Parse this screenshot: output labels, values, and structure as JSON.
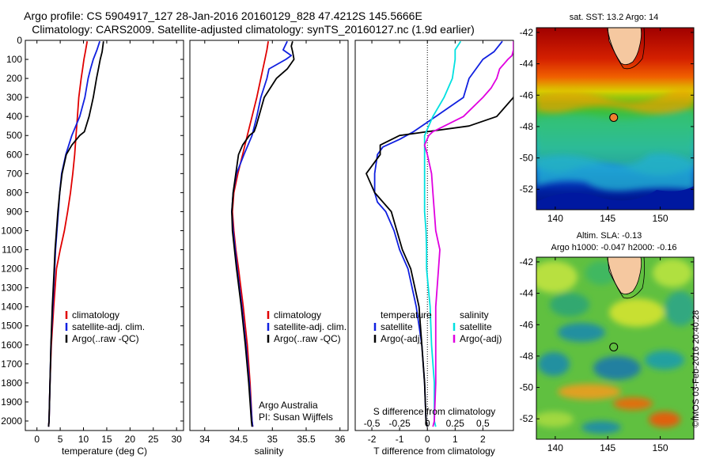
{
  "title": {
    "line1": "Argo profile: CS 5904917_127 28-Jan-2016 20160129_828 47.4212S 145.5666E",
    "line2": "Climatology: CARS2009. Satellite-adjusted climatology: synTS_20160127.nc (1.9d earlier)"
  },
  "colors": {
    "climatology": "#e00000",
    "satellite": "#1020e0",
    "argo": "#000000",
    "satellite_salinity": "#00e0e0",
    "argo_salinity": "#e000e0"
  },
  "y_axis": {
    "range": [
      0,
      2050
    ],
    "ticks": [
      0,
      100,
      200,
      300,
      400,
      500,
      600,
      700,
      800,
      900,
      1000,
      1100,
      1200,
      1300,
      1400,
      1500,
      1600,
      1700,
      1800,
      1900,
      2000
    ]
  },
  "chart_data": [
    {
      "type": "line",
      "id": "temperature",
      "xlabel": "temperature (deg C)",
      "xlim": [
        -2.5,
        31.5
      ],
      "ylim": [
        0,
        2050
      ],
      "x_ticks": [
        0,
        5,
        10,
        15,
        20,
        25,
        30
      ],
      "legend": {
        "position": "lower-right",
        "entries": [
          "climatology",
          "satellite-adj. clim.",
          "Argo(..raw -QC)"
        ]
      },
      "series": [
        {
          "name": "climatology",
          "color_key": "climatology",
          "depth": [
            5,
            60,
            100,
            150,
            200,
            300,
            400,
            500,
            600,
            700,
            800,
            900,
            1000,
            1100,
            1200,
            1400,
            1600,
            1800,
            2000,
            2030
          ],
          "values": [
            10.8,
            10.4,
            10.1,
            9.8,
            9.5,
            9.0,
            8.7,
            8.4,
            8.1,
            7.7,
            7.2,
            6.6,
            5.9,
            5.0,
            4.2,
            3.6,
            3.1,
            2.8,
            2.6,
            2.5
          ]
        },
        {
          "name": "satellite-adj. clim.",
          "color_key": "satellite",
          "depth": [
            5,
            50,
            100,
            150,
            200,
            300,
            400,
            500,
            600,
            700,
            800,
            900,
            1000,
            1100,
            1200,
            1400,
            1600,
            1800,
            2000,
            2030
          ],
          "values": [
            13.5,
            12.9,
            12.1,
            11.5,
            11.0,
            10.3,
            9.2,
            7.5,
            6.2,
            5.3,
            4.9,
            4.6,
            4.3,
            4.0,
            3.8,
            3.4,
            3.0,
            2.8,
            2.6,
            2.5
          ]
        },
        {
          "name": "Argo(..raw -QC)",
          "color_key": "argo",
          "depth": [
            5,
            60,
            100,
            150,
            200,
            300,
            400,
            480,
            500,
            550,
            600,
            700,
            800,
            900,
            1000,
            1100,
            1200,
            1400,
            1600,
            1800,
            2000,
            2030
          ],
          "values": [
            14.3,
            14.0,
            13.6,
            13.2,
            12.8,
            12.1,
            11.2,
            10.2,
            9.2,
            7.5,
            6.3,
            5.4,
            4.9,
            4.5,
            4.2,
            3.9,
            3.7,
            3.3,
            3.0,
            2.8,
            2.6,
            2.5
          ]
        }
      ]
    },
    {
      "type": "line",
      "id": "salinity",
      "xlabel": "salinity",
      "xlim": [
        33.78,
        36.12
      ],
      "ylim": [
        0,
        2050
      ],
      "x_ticks": [
        34,
        34.5,
        35,
        35.5,
        36
      ],
      "legend": {
        "position": "lower-right",
        "entries": [
          "climatology",
          "satellite-adj. clim.",
          "Argo(..raw -QC)"
        ]
      },
      "annotations": [
        "Argo Australia",
        "PI: Susan Wijffels"
      ],
      "series": [
        {
          "name": "climatology",
          "color_key": "climatology",
          "depth": [
            5,
            50,
            100,
            200,
            300,
            400,
            500,
            600,
            700,
            800,
            900,
            1000,
            1100,
            1200,
            1400,
            1600,
            1800,
            2000,
            2030
          ],
          "values": [
            34.94,
            34.92,
            34.89,
            34.83,
            34.77,
            34.7,
            34.63,
            34.56,
            34.49,
            34.43,
            34.41,
            34.43,
            34.46,
            34.5,
            34.57,
            34.63,
            34.67,
            34.7,
            34.71
          ]
        },
        {
          "name": "satellite-adj. clim.",
          "color_key": "satellite",
          "depth": [
            5,
            50,
            80,
            100,
            150,
            200,
            300,
            400,
            500,
            600,
            700,
            800,
            900,
            1000,
            1100,
            1200,
            1400,
            1600,
            1800,
            2000,
            2030
          ],
          "values": [
            35.22,
            35.16,
            35.28,
            35.2,
            34.95,
            34.92,
            34.83,
            34.77,
            34.7,
            34.58,
            34.47,
            34.42,
            34.4,
            34.42,
            34.45,
            34.48,
            34.55,
            34.61,
            34.66,
            34.7,
            34.71
          ]
        },
        {
          "name": "Argo(..raw -QC)",
          "color_key": "argo",
          "depth": [
            5,
            30,
            60,
            100,
            150,
            200,
            300,
            400,
            450,
            480,
            500,
            550,
            600,
            700,
            800,
            900,
            1000,
            1100,
            1200,
            1400,
            1600,
            1800,
            2000,
            2030
          ],
          "values": [
            35.3,
            35.28,
            35.3,
            35.32,
            35.22,
            35.06,
            34.88,
            34.8,
            34.76,
            34.73,
            34.66,
            34.56,
            34.5,
            34.46,
            34.42,
            34.4,
            34.41,
            34.44,
            34.47,
            34.54,
            34.6,
            34.65,
            34.69,
            34.7
          ]
        }
      ]
    },
    {
      "type": "line",
      "id": "difference",
      "xlabel": "T difference from climatology",
      "xlabel_top": "S difference from climatology",
      "xlim": [
        -2.6,
        3.1
      ],
      "ylim": [
        0,
        2050
      ],
      "x_ticks": [
        -2,
        -1,
        0,
        1,
        2
      ],
      "x_ticks_top": [
        {
          "label": "-0.5",
          "at": -2
        },
        {
          "label": "-0.25",
          "at": -1
        },
        {
          "label": "0",
          "at": 0
        },
        {
          "label": "0.25",
          "at": 1
        },
        {
          "label": "0.5",
          "at": 2
        }
      ],
      "legend": {
        "position": "lower-center",
        "groups": [
          {
            "title": "temperature",
            "entries": [
              "satellite",
              "Argo(-adj)"
            ]
          },
          {
            "title": "salinity",
            "entries": [
              "satellite",
              "Argo(-adj)"
            ]
          }
        ]
      },
      "series": [
        {
          "name": "temperature satellite",
          "color_key": "satellite",
          "depth": [
            5,
            60,
            100,
            200,
            300,
            400,
            480,
            520,
            560,
            600,
            700,
            800,
            850,
            900,
            1000,
            1100,
            1200,
            1400,
            1600,
            1800,
            2000,
            2030
          ],
          "values": [
            2.7,
            2.4,
            2.0,
            1.5,
            1.3,
            0.3,
            -0.5,
            -1.0,
            -1.6,
            -1.8,
            -1.9,
            -1.9,
            -1.8,
            -1.5,
            -1.2,
            -1.0,
            -0.7,
            -0.4,
            -0.2,
            -0.1,
            -0.05,
            0.0
          ]
        },
        {
          "name": "temperature Argo(-adj)",
          "color_key": "argo",
          "depth": [
            5,
            60,
            100,
            150,
            200,
            300,
            400,
            450,
            480,
            500,
            550,
            600,
            700,
            800,
            900,
            1000,
            1100,
            1200,
            1400,
            1600,
            1800,
            2000,
            2030
          ],
          "values": [
            3.5,
            3.5,
            3.4,
            3.3,
            3.3,
            3.1,
            2.5,
            1.5,
            0.0,
            -1.0,
            -1.7,
            -1.7,
            -2.2,
            -1.9,
            -1.3,
            -1.1,
            -0.9,
            -0.6,
            -0.3,
            -0.2,
            -0.1,
            -0.05,
            0.0
          ]
        },
        {
          "name": "salinity satellite",
          "color_key": "satellite_salinity",
          "depth": [
            5,
            50,
            100,
            200,
            300,
            400,
            500,
            600,
            700,
            800,
            900,
            1000,
            1100,
            1200,
            1400,
            1600,
            1800,
            2000,
            2030
          ],
          "values": [
            1.2,
            1.0,
            1.0,
            0.9,
            0.6,
            0.2,
            -0.1,
            -0.1,
            -0.1,
            -0.1,
            -0.1,
            -0.05,
            -0.03,
            -0.03,
            0.1,
            0.15,
            0.25,
            0.25,
            0.3
          ]
        },
        {
          "name": "salinity Argo(-adj)",
          "color_key": "argo_salinity",
          "depth": [
            5,
            50,
            80,
            100,
            150,
            200,
            250,
            300,
            400,
            480,
            500,
            550,
            600,
            700,
            800,
            900,
            1000,
            1100,
            1200,
            1400,
            1600,
            1800,
            2000,
            2030
          ],
          "values": [
            3.1,
            3.1,
            3.05,
            2.9,
            2.6,
            2.5,
            2.3,
            2.0,
            1.3,
            0.2,
            0.05,
            -0.1,
            0.0,
            0.15,
            0.2,
            0.25,
            0.3,
            0.45,
            0.4,
            0.3,
            0.3,
            0.3,
            0.25,
            0.2
          ]
        }
      ]
    }
  ],
  "maps": [
    {
      "id": "sst-map",
      "title": "sat. SST: 13.2 Argo: 14",
      "x_ticks": [
        140,
        145,
        150
      ],
      "y_ticks": [
        -42,
        -44,
        -46,
        -48,
        -50,
        -52
      ],
      "xlim": [
        138.2,
        153.2
      ],
      "ylim": [
        -53.3,
        -41.7
      ],
      "float_position": [
        145.5666,
        -47.4212
      ]
    },
    {
      "id": "sla-map",
      "title_line1": "Altim. SLA: -0.13",
      "title_line2": "Argo h1000: -0.047 h2000: -0.16",
      "x_ticks": [
        140,
        145,
        150
      ],
      "y_ticks": [
        -42,
        -44,
        -46,
        -48,
        -50,
        -52
      ],
      "xlim": [
        138.2,
        153.2
      ],
      "ylim": [
        -53.3,
        -41.7
      ],
      "float_position": [
        145.5666,
        -47.4212
      ]
    }
  ],
  "credit": "©IMOS 03-Feb-2016 20:40:28"
}
